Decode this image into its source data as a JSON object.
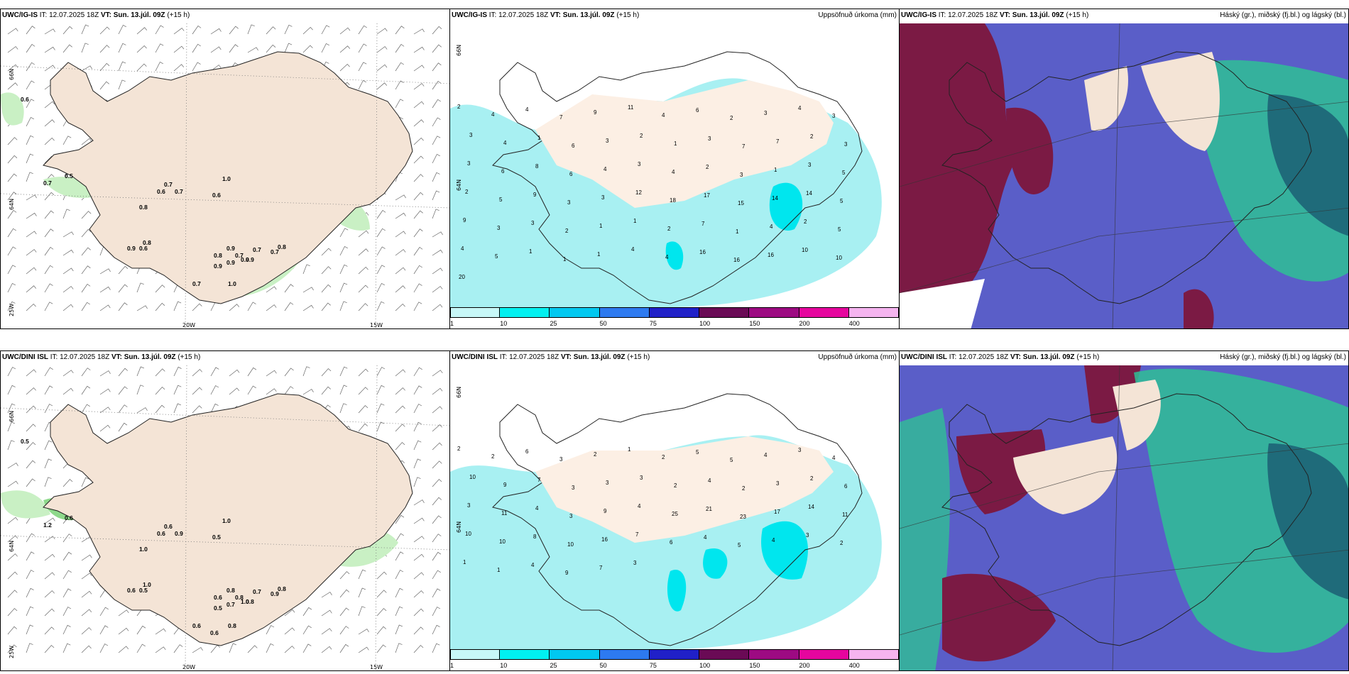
{
  "rows": [
    {
      "model": "UWC/IG-IS",
      "init_text": "IT: 12.07.2025 18Z",
      "valid_label": "VT: Sun. 13.júl. 09Z",
      "lead": "(+15 h)",
      "wind_values": [
        "0.6",
        "0.7",
        "0.5",
        "0.7",
        "0.6",
        "0.8",
        "0.7",
        "1.0",
        "0.6",
        "0.8",
        "0.9",
        "0.6",
        "0.9",
        "0.8",
        "0.7",
        "0.9",
        "0.7",
        "0.8",
        "0.7",
        "0.9",
        "0.9",
        "0.9",
        "1.0",
        "0.7"
      ],
      "precip_values": [
        "2",
        "4",
        "4",
        "7",
        "9",
        "11",
        "4",
        "6",
        "2",
        "3",
        "4",
        "3",
        "3",
        "4",
        "1",
        "6",
        "3",
        "2",
        "1",
        "3",
        "7",
        "7",
        "2",
        "3",
        "3",
        "6",
        "8",
        "6",
        "4",
        "3",
        "4",
        "2",
        "3",
        "1",
        "3",
        "5",
        "2",
        "5",
        "9",
        "3",
        "3",
        "12",
        "18",
        "17",
        "15",
        "14",
        "14",
        "5",
        "9",
        "3",
        "3",
        "2",
        "1",
        "1",
        "2",
        "7",
        "1",
        "4",
        "2",
        "5",
        "4",
        "5",
        "1",
        "1",
        "1",
        "4",
        "4",
        "16",
        "16",
        "16",
        "10",
        "10",
        "20"
      ]
    },
    {
      "model": "UWC/DINI ISL",
      "init_text": "IT: 12.07.2025 18Z",
      "valid_label": "VT: Sun. 13.júl. 09Z",
      "lead": "(+15 h)",
      "wind_values": [
        "0.5",
        "1.2",
        "0.6",
        "0.6",
        "0.6",
        "1.0",
        "0.9",
        "1.0",
        "0.5",
        "1.0",
        "0.6",
        "0.5",
        "0.8",
        "0.6",
        "0.8",
        "0.8",
        "0.7",
        "0.8",
        "0.9",
        "1.0",
        "0.5",
        "0.7",
        "0.8",
        "0.6",
        "0.6"
      ],
      "precip_values": [
        "2",
        "2",
        "6",
        "3",
        "2",
        "1",
        "2",
        "5",
        "5",
        "4",
        "3",
        "4",
        "10",
        "9",
        "7",
        "3",
        "3",
        "3",
        "2",
        "4",
        "2",
        "3",
        "2",
        "6",
        "3",
        "11",
        "4",
        "3",
        "9",
        "4",
        "25",
        "21",
        "23",
        "17",
        "14",
        "11",
        "10",
        "10",
        "8",
        "10",
        "16",
        "7",
        "6",
        "4",
        "5",
        "4",
        "3",
        "2",
        "1",
        "1",
        "4",
        "9",
        "7",
        "3"
      ]
    }
  ],
  "axes": {
    "lat66": "66N",
    "lat64": "64N",
    "lon25": "25W",
    "lon20": "20W",
    "lon15": "15W"
  },
  "precip_title": "Uppsöfnuð úrkoma (mm)",
  "cloud_title": "Háský (gr.), miðský (fj.bl.) og lágský (bl.)",
  "colorbar": {
    "ticks": [
      "1",
      "10",
      "25",
      "50",
      "75",
      "100",
      "150",
      "200",
      "400"
    ],
    "colors": [
      "#c7f7f7",
      "#00f0f0",
      "#00c8f0",
      "#2d7af0",
      "#2020c8",
      "#6a0a55",
      "#9d0a82",
      "#e6059e",
      "#f5b4ef"
    ]
  },
  "colors": {
    "land": "#f4e4d6",
    "precip_light": "#a8f0f2",
    "precip_mid": "#00e6ee",
    "wind_green_light": "#c9f0c4",
    "wind_green_mid": "#8ed98b",
    "wind_green_dark": "#4da64d",
    "cloud_high": "#7b1a44",
    "cloud_mid": "#5a5ec8",
    "cloud_low": "#2fbf95"
  }
}
